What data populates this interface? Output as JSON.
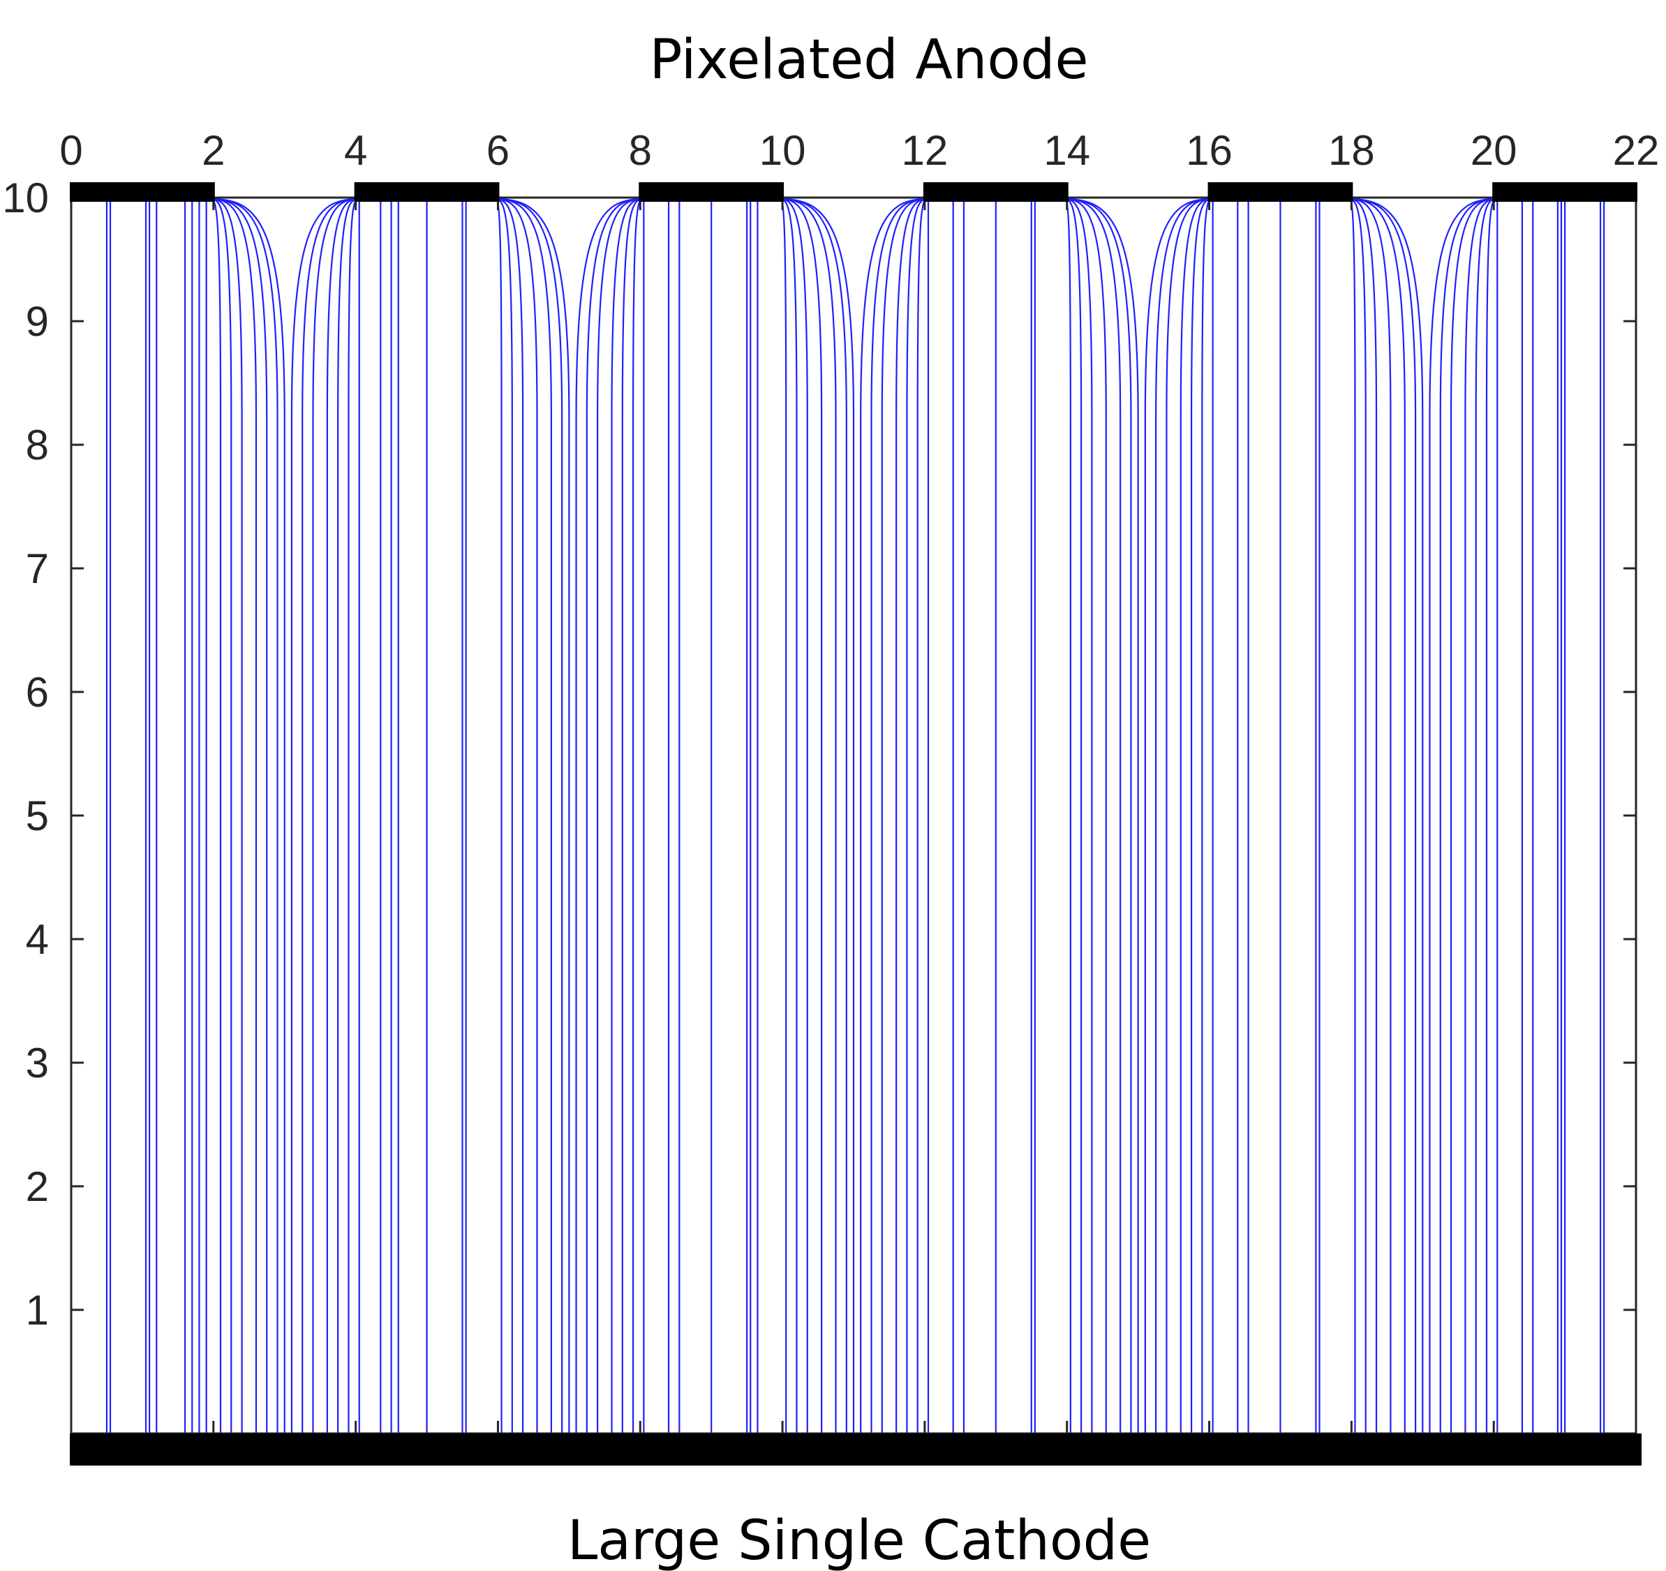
{
  "figure": {
    "top_label": "Pixelated Anode",
    "bottom_label": "Large Single Cathode"
  },
  "chart_data": {
    "type": "line",
    "title": "",
    "xlabel": "",
    "ylabel": "",
    "xlim": [
      0,
      22
    ],
    "ylim": [
      0,
      10
    ],
    "x_ticks": [
      0,
      2,
      4,
      6,
      8,
      10,
      12,
      14,
      16,
      18,
      20,
      22
    ],
    "y_ticks": [
      1,
      2,
      3,
      4,
      5,
      6,
      7,
      8,
      9,
      10
    ],
    "x_tick_position": "top",
    "grid": false,
    "legend": "none",
    "colors": {
      "field_lines": "#1f1fff",
      "electrodes": "#000000",
      "axes": "#262626"
    },
    "anode_pixels": [
      [
        0,
        2
      ],
      [
        4,
        6
      ],
      [
        8,
        10
      ],
      [
        12,
        14
      ],
      [
        16,
        18
      ],
      [
        20,
        22
      ]
    ],
    "cathode": [
      0,
      22
    ],
    "field_line_bottom_x": [
      0.5,
      0.55,
      1.05,
      1.1,
      1.2,
      1.6,
      1.7,
      1.8,
      1.9,
      2.1,
      2.25,
      2.4,
      2.6,
      2.75,
      2.9,
      3.0,
      3.1,
      3.25,
      3.4,
      3.6,
      3.75,
      3.9,
      4.05,
      4.35,
      4.5,
      4.6,
      5.0,
      5.5,
      5.55,
      6.05,
      6.2,
      6.35,
      6.55,
      6.75,
      6.9,
      7.0,
      7.1,
      7.25,
      7.4,
      7.6,
      7.75,
      7.9,
      8.05,
      8.4,
      8.55,
      9.0,
      9.5,
      9.55,
      9.65,
      10.05,
      10.2,
      10.35,
      10.55,
      10.75,
      10.9,
      11.0,
      11.1,
      11.25,
      11.4,
      11.6,
      11.75,
      11.9,
      12.05,
      12.4,
      12.55,
      13.0,
      13.5,
      13.55,
      14.05,
      14.2,
      14.35,
      14.55,
      14.75,
      14.9,
      15.0,
      15.1,
      15.25,
      15.4,
      15.6,
      15.75,
      15.9,
      16.05,
      16.4,
      16.55,
      17.0,
      17.5,
      17.55,
      18.05,
      18.2,
      18.35,
      18.55,
      18.75,
      18.9,
      19.0,
      19.1,
      19.25,
      19.4,
      19.6,
      19.75,
      19.9,
      20.05,
      20.4,
      20.55,
      20.9,
      20.95,
      21.0,
      21.5,
      21.55
    ]
  }
}
